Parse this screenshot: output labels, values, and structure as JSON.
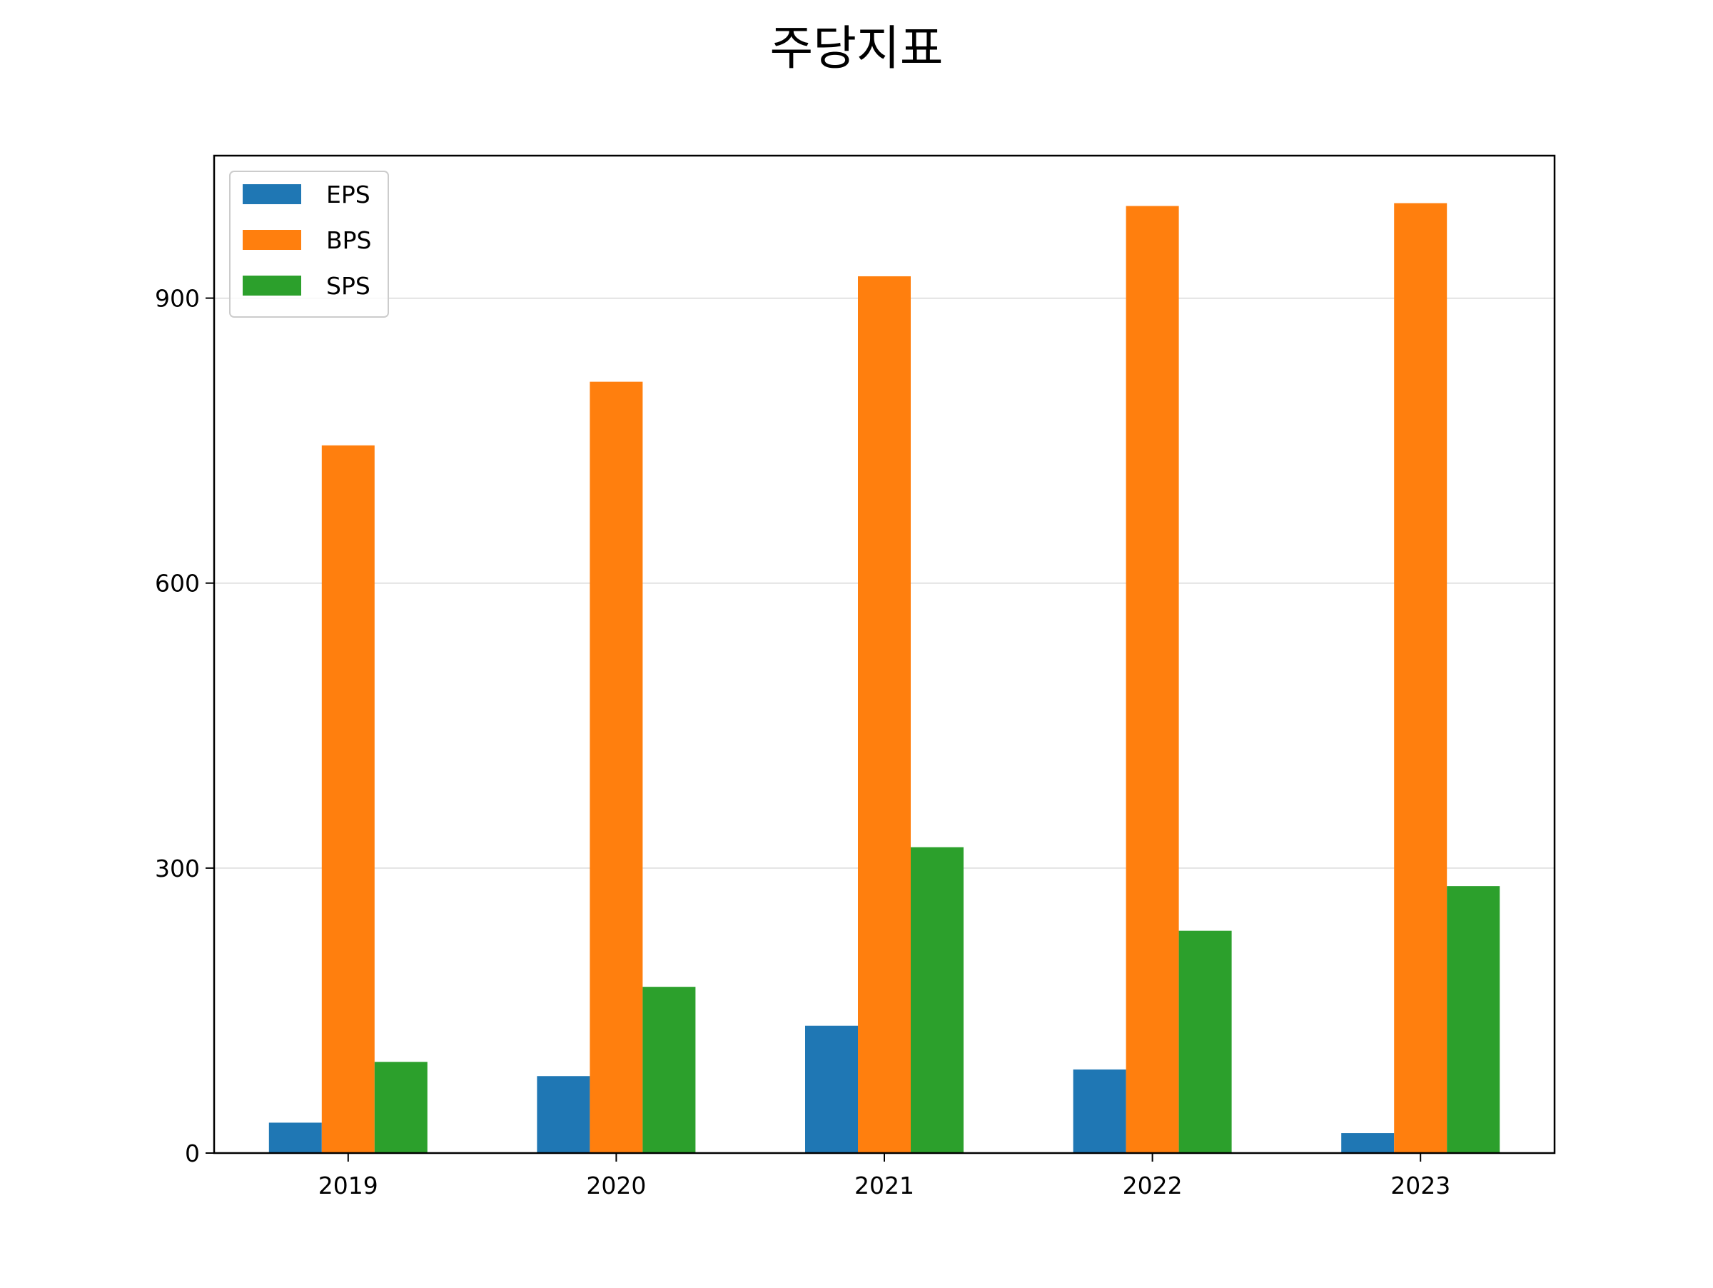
{
  "chart_data": {
    "type": "bar",
    "title": "주당지표",
    "xlabel": "",
    "ylabel": "",
    "categories": [
      "2019",
      "2020",
      "2021",
      "2022",
      "2023"
    ],
    "series": [
      {
        "name": "EPS",
        "color": "#1f77b4",
        "values": [
          32,
          81,
          134,
          88,
          21
        ]
      },
      {
        "name": "BPS",
        "color": "#ff7f0e",
        "values": [
          745,
          812,
          923,
          997,
          1000
        ]
      },
      {
        "name": "SPS",
        "color": "#2ca02c",
        "values": [
          96,
          175,
          322,
          234,
          281
        ]
      }
    ],
    "ylim": [
      0,
      1050
    ],
    "yticks": [
      0,
      300,
      600,
      900
    ],
    "ytick_labels": [
      "0",
      "300",
      "600",
      "900"
    ],
    "grid": "y",
    "legend_position": "upper-left"
  }
}
